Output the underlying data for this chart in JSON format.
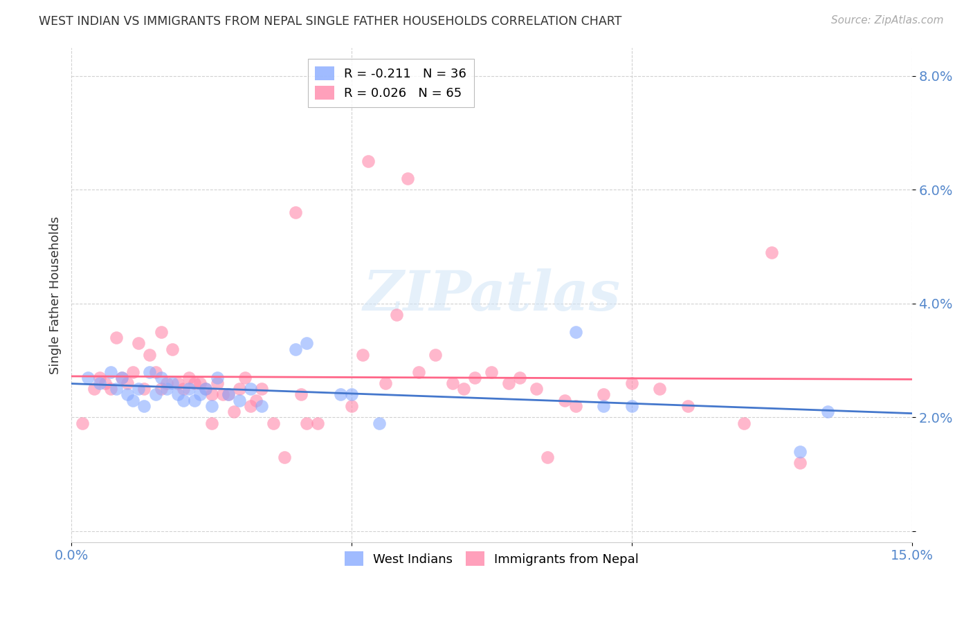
{
  "title": "WEST INDIAN VS IMMIGRANTS FROM NEPAL SINGLE FATHER HOUSEHOLDS CORRELATION CHART",
  "source": "Source: ZipAtlas.com",
  "ylabel": "Single Father Households",
  "xlim": [
    0.0,
    0.15
  ],
  "ylim": [
    -0.002,
    0.085
  ],
  "xticks": [
    0.0,
    0.05,
    0.1,
    0.15
  ],
  "xticklabels": [
    "0.0%",
    "",
    "",
    "15.0%"
  ],
  "yticks": [
    0.0,
    0.02,
    0.04,
    0.06,
    0.08
  ],
  "yticklabels": [
    "",
    "2.0%",
    "4.0%",
    "6.0%",
    "8.0%"
  ],
  "grid_color": "#cccccc",
  "background_color": "#ffffff",
  "watermark": "ZIPatlas",
  "legend_r1": "R = -0.211",
  "legend_n1": "N = 36",
  "legend_r2": "R = 0.026",
  "legend_n2": "N = 65",
  "blue_color": "#88aaff",
  "pink_color": "#ff88aa",
  "blue_line_color": "#4477cc",
  "pink_line_color": "#ff6688",
  "axis_label_color": "#5588cc",
  "title_color": "#333333",
  "blue_scatter_x": [
    0.003,
    0.005,
    0.007,
    0.008,
    0.009,
    0.01,
    0.011,
    0.012,
    0.013,
    0.014,
    0.015,
    0.016,
    0.017,
    0.018,
    0.019,
    0.02,
    0.021,
    0.022,
    0.023,
    0.024,
    0.025,
    0.026,
    0.028,
    0.03,
    0.032,
    0.034,
    0.04,
    0.042,
    0.048,
    0.05,
    0.055,
    0.09,
    0.095,
    0.1,
    0.13,
    0.135
  ],
  "blue_scatter_y": [
    0.027,
    0.026,
    0.028,
    0.025,
    0.027,
    0.024,
    0.023,
    0.025,
    0.022,
    0.028,
    0.024,
    0.027,
    0.025,
    0.026,
    0.024,
    0.023,
    0.025,
    0.023,
    0.024,
    0.025,
    0.022,
    0.027,
    0.024,
    0.023,
    0.025,
    0.022,
    0.032,
    0.033,
    0.024,
    0.024,
    0.019,
    0.035,
    0.022,
    0.022,
    0.014,
    0.021
  ],
  "pink_scatter_x": [
    0.002,
    0.004,
    0.005,
    0.006,
    0.007,
    0.008,
    0.009,
    0.01,
    0.011,
    0.012,
    0.013,
    0.014,
    0.015,
    0.016,
    0.016,
    0.017,
    0.018,
    0.019,
    0.02,
    0.021,
    0.022,
    0.023,
    0.024,
    0.025,
    0.025,
    0.026,
    0.027,
    0.028,
    0.029,
    0.03,
    0.031,
    0.032,
    0.033,
    0.034,
    0.036,
    0.038,
    0.04,
    0.041,
    0.042,
    0.044,
    0.05,
    0.052,
    0.053,
    0.056,
    0.058,
    0.06,
    0.062,
    0.065,
    0.068,
    0.07,
    0.072,
    0.075,
    0.078,
    0.08,
    0.083,
    0.085,
    0.088,
    0.09,
    0.095,
    0.1,
    0.105,
    0.11,
    0.12,
    0.125,
    0.13
  ],
  "pink_scatter_y": [
    0.019,
    0.025,
    0.027,
    0.026,
    0.025,
    0.034,
    0.027,
    0.026,
    0.028,
    0.033,
    0.025,
    0.031,
    0.028,
    0.035,
    0.025,
    0.026,
    0.032,
    0.026,
    0.025,
    0.027,
    0.026,
    0.026,
    0.025,
    0.019,
    0.024,
    0.026,
    0.024,
    0.024,
    0.021,
    0.025,
    0.027,
    0.022,
    0.023,
    0.025,
    0.019,
    0.013,
    0.056,
    0.024,
    0.019,
    0.019,
    0.022,
    0.031,
    0.065,
    0.026,
    0.038,
    0.062,
    0.028,
    0.031,
    0.026,
    0.025,
    0.027,
    0.028,
    0.026,
    0.027,
    0.025,
    0.013,
    0.023,
    0.022,
    0.024,
    0.026,
    0.025,
    0.022,
    0.019,
    0.049,
    0.012
  ]
}
